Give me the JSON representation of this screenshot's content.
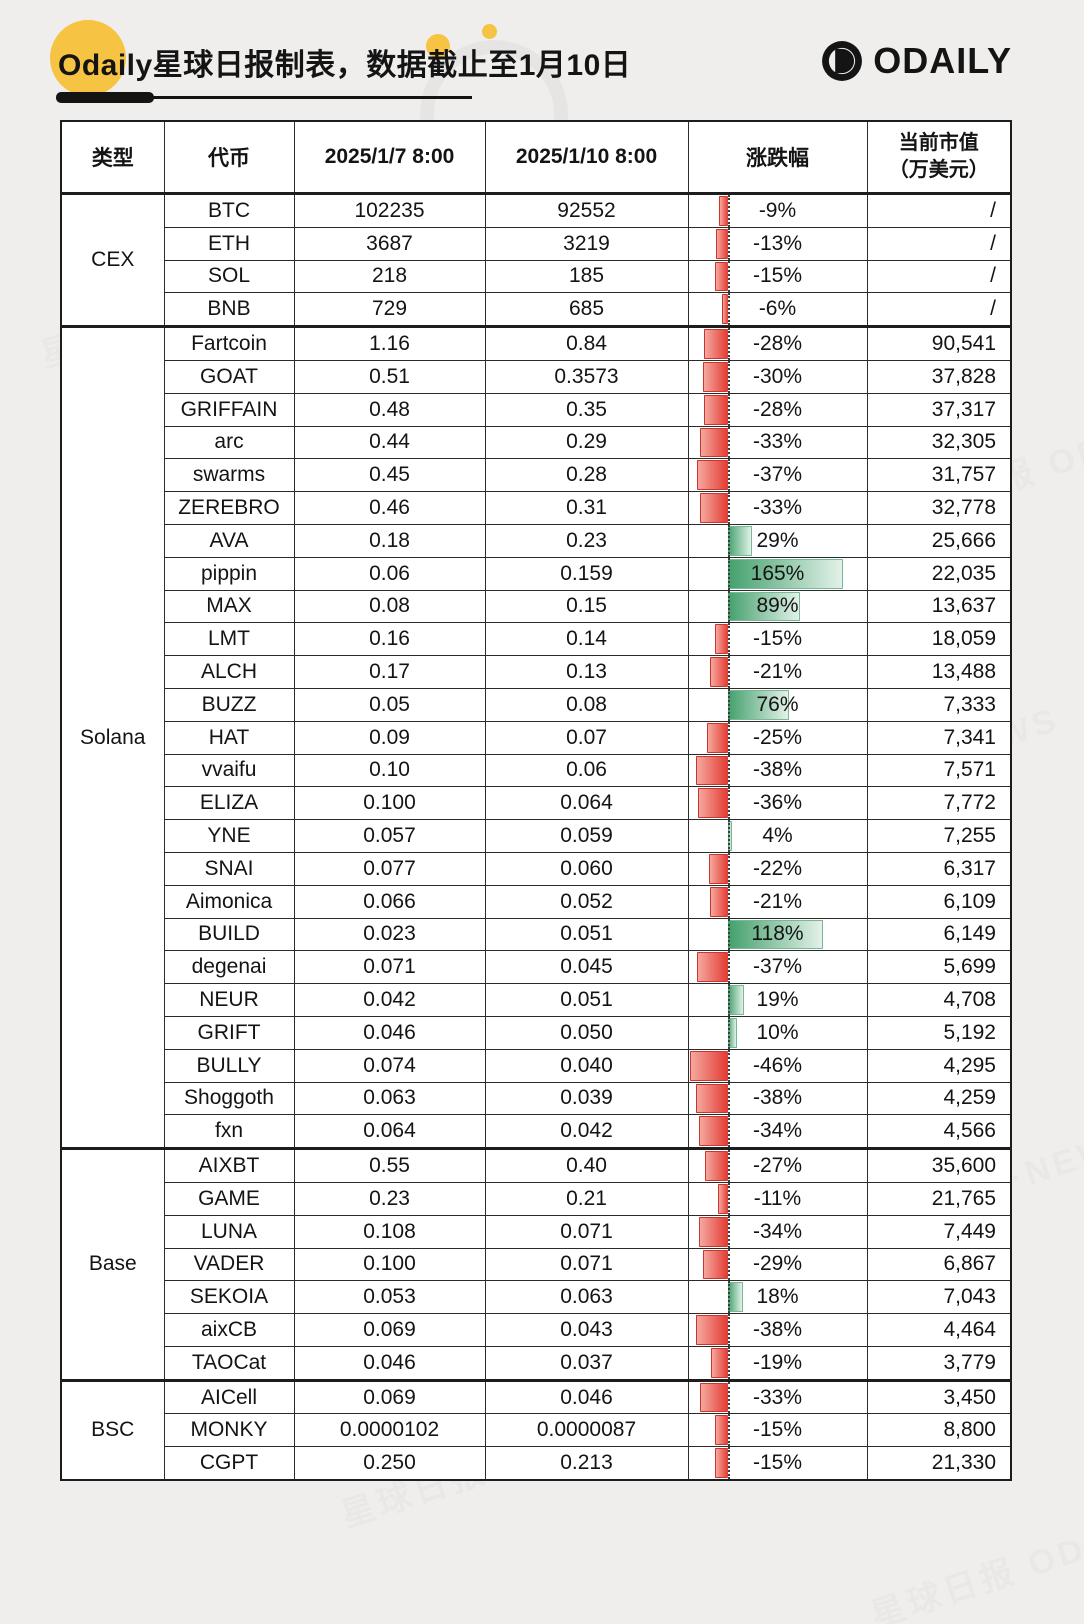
{
  "header": {
    "title": "Odaily星球日报制表，数据截止至1月10日",
    "logo_text": "ODAILY"
  },
  "colors": {
    "accent_yellow": "#F6C343",
    "negative_bar_red": "#E23A31",
    "positive_bar_green": "#43A06C",
    "table_border": "#1D1D1D"
  },
  "watermark_text": "星球日报 ODAILY·NEWS",
  "chart_data": {
    "type": "table",
    "title": "Odaily星球日报制表，数据截止至1月10日",
    "columns": [
      "类型",
      "代币",
      "2025/1/7 8:00",
      "2025/1/10 8:00",
      "涨跌幅",
      "当前市值（万美元）"
    ],
    "mcap_header": {
      "line1": "当前市值",
      "line2": "（万美元）"
    },
    "change_bar": {
      "unit": "%",
      "baseline": 0,
      "negative_color": "#E23A31",
      "positive_color": "#43A06C"
    },
    "groups": [
      {
        "type": "CEX",
        "rows": [
          {
            "token": "BTC",
            "p1": "102235",
            "p2": "92552",
            "chg": -9,
            "chg_label": "-9%",
            "mcap": "/"
          },
          {
            "token": "ETH",
            "p1": "3687",
            "p2": "3219",
            "chg": -13,
            "chg_label": "-13%",
            "mcap": "/"
          },
          {
            "token": "SOL",
            "p1": "218",
            "p2": "185",
            "chg": -15,
            "chg_label": "-15%",
            "mcap": "/"
          },
          {
            "token": "BNB",
            "p1": "729",
            "p2": "685",
            "chg": -6,
            "chg_label": "-6%",
            "mcap": "/"
          }
        ]
      },
      {
        "type": "Solana",
        "rows": [
          {
            "token": "Fartcoin",
            "p1": "1.16",
            "p2": "0.84",
            "chg": -28,
            "chg_label": "-28%",
            "mcap": "90,541"
          },
          {
            "token": "GOAT",
            "p1": "0.51",
            "p2": "0.3573",
            "chg": -30,
            "chg_label": "-30%",
            "mcap": "37,828"
          },
          {
            "token": "GRIFFAIN",
            "p1": "0.48",
            "p2": "0.35",
            "chg": -28,
            "chg_label": "-28%",
            "mcap": "37,317"
          },
          {
            "token": "arc",
            "p1": "0.44",
            "p2": "0.29",
            "chg": -33,
            "chg_label": "-33%",
            "mcap": "32,305"
          },
          {
            "token": "swarms",
            "p1": "0.45",
            "p2": "0.28",
            "chg": -37,
            "chg_label": "-37%",
            "mcap": "31,757"
          },
          {
            "token": "ZEREBRO",
            "p1": "0.46",
            "p2": "0.31",
            "chg": -33,
            "chg_label": "-33%",
            "mcap": "32,778"
          },
          {
            "token": "AVA",
            "p1": "0.18",
            "p2": "0.23",
            "chg": 29,
            "chg_label": "29%",
            "mcap": "25,666"
          },
          {
            "token": "pippin",
            "p1": "0.06",
            "p2": "0.159",
            "chg": 165,
            "chg_label": "165%",
            "mcap": "22,035"
          },
          {
            "token": "MAX",
            "p1": "0.08",
            "p2": "0.15",
            "chg": 89,
            "chg_label": "89%",
            "mcap": "13,637"
          },
          {
            "token": "LMT",
            "p1": "0.16",
            "p2": "0.14",
            "chg": -15,
            "chg_label": "-15%",
            "mcap": "18,059"
          },
          {
            "token": "ALCH",
            "p1": "0.17",
            "p2": "0.13",
            "chg": -21,
            "chg_label": "-21%",
            "mcap": "13,488"
          },
          {
            "token": "BUZZ",
            "p1": "0.05",
            "p2": "0.08",
            "chg": 76,
            "chg_label": "76%",
            "mcap": "7,333"
          },
          {
            "token": "HAT",
            "p1": "0.09",
            "p2": "0.07",
            "chg": -25,
            "chg_label": "-25%",
            "mcap": "7,341"
          },
          {
            "token": "vvaifu",
            "p1": "0.10",
            "p2": "0.06",
            "chg": -38,
            "chg_label": "-38%",
            "mcap": "7,571"
          },
          {
            "token": "ELIZA",
            "p1": "0.100",
            "p2": "0.064",
            "chg": -36,
            "chg_label": "-36%",
            "mcap": "7,772"
          },
          {
            "token": "YNE",
            "p1": "0.057",
            "p2": "0.059",
            "chg": 4,
            "chg_label": "4%",
            "mcap": "7,255"
          },
          {
            "token": "SNAI",
            "p1": "0.077",
            "p2": "0.060",
            "chg": -22,
            "chg_label": "-22%",
            "mcap": "6,317"
          },
          {
            "token": "Aimonica",
            "p1": "0.066",
            "p2": "0.052",
            "chg": -21,
            "chg_label": "-21%",
            "mcap": "6,109"
          },
          {
            "token": "BUILD",
            "p1": "0.023",
            "p2": "0.051",
            "chg": 118,
            "chg_label": "118%",
            "mcap": "6,149"
          },
          {
            "token": "degenai",
            "p1": "0.071",
            "p2": "0.045",
            "chg": -37,
            "chg_label": "-37%",
            "mcap": "5,699"
          },
          {
            "token": "NEUR",
            "p1": "0.042",
            "p2": "0.051",
            "chg": 19,
            "chg_label": "19%",
            "mcap": "4,708"
          },
          {
            "token": "GRIFT",
            "p1": "0.046",
            "p2": "0.050",
            "chg": 10,
            "chg_label": "10%",
            "mcap": "5,192"
          },
          {
            "token": "BULLY",
            "p1": "0.074",
            "p2": "0.040",
            "chg": -46,
            "chg_label": "-46%",
            "mcap": "4,295"
          },
          {
            "token": "Shoggoth",
            "p1": "0.063",
            "p2": "0.039",
            "chg": -38,
            "chg_label": "-38%",
            "mcap": "4,259"
          },
          {
            "token": "fxn",
            "p1": "0.064",
            "p2": "0.042",
            "chg": -34,
            "chg_label": "-34%",
            "mcap": "4,566"
          }
        ]
      },
      {
        "type": "Base",
        "rows": [
          {
            "token": "AIXBT",
            "p1": "0.55",
            "p2": "0.40",
            "chg": -27,
            "chg_label": "-27%",
            "mcap": "35,600"
          },
          {
            "token": "GAME",
            "p1": "0.23",
            "p2": "0.21",
            "chg": -11,
            "chg_label": "-11%",
            "mcap": "21,765"
          },
          {
            "token": "LUNA",
            "p1": "0.108",
            "p2": "0.071",
            "chg": -34,
            "chg_label": "-34%",
            "mcap": "7,449"
          },
          {
            "token": "VADER",
            "p1": "0.100",
            "p2": "0.071",
            "chg": -29,
            "chg_label": "-29%",
            "mcap": "6,867"
          },
          {
            "token": "SEKOIA",
            "p1": "0.053",
            "p2": "0.063",
            "chg": 18,
            "chg_label": "18%",
            "mcap": "7,043"
          },
          {
            "token": "aixCB",
            "p1": "0.069",
            "p2": "0.043",
            "chg": -38,
            "chg_label": "-38%",
            "mcap": "4,464"
          },
          {
            "token": "TAOCat",
            "p1": "0.046",
            "p2": "0.037",
            "chg": -19,
            "chg_label": "-19%",
            "mcap": "3,779"
          }
        ]
      },
      {
        "type": "BSC",
        "rows": [
          {
            "token": "AICell",
            "p1": "0.069",
            "p2": "0.046",
            "chg": -33,
            "chg_label": "-33%",
            "mcap": "3,450"
          },
          {
            "token": "MONKY",
            "p1": "0.0000102",
            "p2": "0.0000087",
            "chg": -15,
            "chg_label": "-15%",
            "mcap": "8,800"
          },
          {
            "token": "CGPT",
            "p1": "0.250",
            "p2": "0.213",
            "chg": -15,
            "chg_label": "-15%",
            "mcap": "21,330"
          }
        ]
      }
    ]
  }
}
